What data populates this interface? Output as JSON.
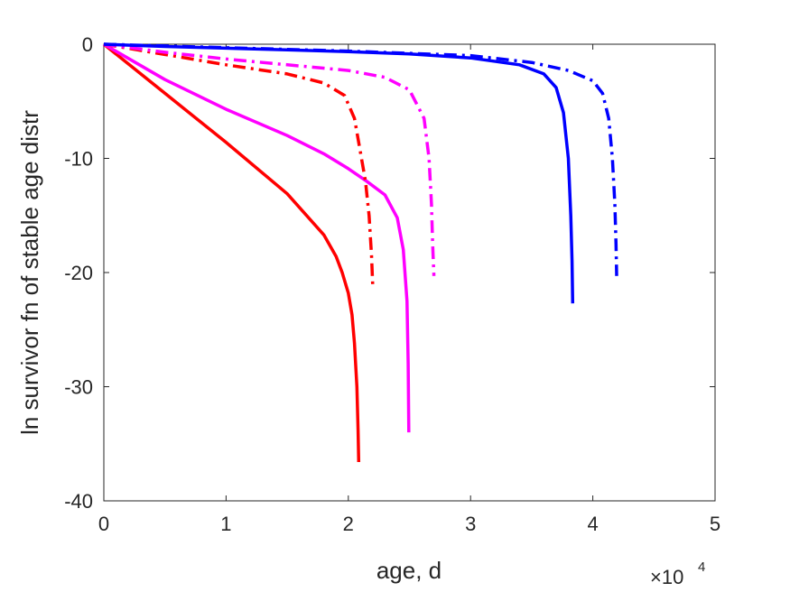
{
  "chart_data": {
    "type": "line",
    "xlabel": "age, d",
    "ylabel": "ln survivor fn of stable age distr",
    "x_multiplier_label": "×10",
    "x_multiplier_exponent": "4",
    "xlim": [
      0,
      5
    ],
    "ylim": [
      -40,
      0
    ],
    "xticks": [
      "0",
      "1",
      "2",
      "3",
      "4",
      "5"
    ],
    "yticks": [
      "0",
      "-10",
      "-20",
      "-30",
      "-40"
    ],
    "grid": false,
    "legend": "none",
    "series": [
      {
        "color": "#ff0000",
        "style": "solid",
        "points": [
          [
            0,
            0
          ],
          [
            0.5,
            -4.3
          ],
          [
            1.0,
            -8.6
          ],
          [
            1.5,
            -13.1
          ],
          [
            1.8,
            -16.7
          ],
          [
            1.9,
            -18.6
          ],
          [
            1.95,
            -20.0
          ],
          [
            2.0,
            -21.8
          ],
          [
            2.03,
            -23.7
          ],
          [
            2.05,
            -26.2
          ],
          [
            2.07,
            -30.0
          ],
          [
            2.08,
            -33.8
          ],
          [
            2.085,
            -36.6
          ]
        ]
      },
      {
        "color": "#ff00ff",
        "style": "solid",
        "points": [
          [
            0,
            0
          ],
          [
            0.5,
            -3.1
          ],
          [
            1.0,
            -5.7
          ],
          [
            1.5,
            -8.0
          ],
          [
            1.8,
            -9.6
          ],
          [
            2.0,
            -10.9
          ],
          [
            2.15,
            -12.0
          ],
          [
            2.3,
            -13.2
          ],
          [
            2.4,
            -15.2
          ],
          [
            2.45,
            -18.0
          ],
          [
            2.48,
            -22.5
          ],
          [
            2.49,
            -28.0
          ],
          [
            2.495,
            -34.0
          ]
        ]
      },
      {
        "color": "#ff0000",
        "style": "dashdot",
        "points": [
          [
            0,
            0
          ],
          [
            0.5,
            -0.9
          ],
          [
            1.0,
            -1.8
          ],
          [
            1.5,
            -2.6
          ],
          [
            1.8,
            -3.4
          ],
          [
            1.97,
            -4.5
          ],
          [
            2.05,
            -6.5
          ],
          [
            2.1,
            -9.5
          ],
          [
            2.14,
            -12.0
          ],
          [
            2.17,
            -15.0
          ],
          [
            2.19,
            -18.5
          ],
          [
            2.2,
            -21.3
          ]
        ]
      },
      {
        "color": "#ff00ff",
        "style": "dashdot",
        "points": [
          [
            0,
            0
          ],
          [
            0.5,
            -0.7
          ],
          [
            1.0,
            -1.3
          ],
          [
            1.5,
            -1.8
          ],
          [
            2.0,
            -2.3
          ],
          [
            2.3,
            -2.9
          ],
          [
            2.5,
            -4.0
          ],
          [
            2.62,
            -6.5
          ],
          [
            2.66,
            -10.0
          ],
          [
            2.68,
            -14.0
          ],
          [
            2.69,
            -17.5
          ],
          [
            2.7,
            -20.3
          ]
        ]
      },
      {
        "color": "#0000ff",
        "style": "solid",
        "points": [
          [
            0,
            0
          ],
          [
            0.5,
            -0.2
          ],
          [
            1.0,
            -0.35
          ],
          [
            1.5,
            -0.5
          ],
          [
            2.0,
            -0.65
          ],
          [
            2.5,
            -0.85
          ],
          [
            3.0,
            -1.2
          ],
          [
            3.4,
            -1.8
          ],
          [
            3.6,
            -2.6
          ],
          [
            3.7,
            -3.8
          ],
          [
            3.76,
            -6.0
          ],
          [
            3.8,
            -10.0
          ],
          [
            3.82,
            -15.0
          ],
          [
            3.83,
            -19.0
          ],
          [
            3.835,
            -22.7
          ]
        ]
      },
      {
        "color": "#0000ff",
        "style": "dashdot",
        "points": [
          [
            0,
            0
          ],
          [
            0.5,
            -0.15
          ],
          [
            1.0,
            -0.3
          ],
          [
            1.5,
            -0.45
          ],
          [
            2.0,
            -0.6
          ],
          [
            2.5,
            -0.8
          ],
          [
            3.0,
            -1.0
          ],
          [
            3.5,
            -1.6
          ],
          [
            3.8,
            -2.3
          ],
          [
            4.0,
            -3.2
          ],
          [
            4.08,
            -4.3
          ],
          [
            4.13,
            -6.5
          ],
          [
            4.16,
            -10.0
          ],
          [
            4.18,
            -14.0
          ],
          [
            4.19,
            -17.5
          ],
          [
            4.195,
            -20.3
          ]
        ]
      }
    ]
  }
}
